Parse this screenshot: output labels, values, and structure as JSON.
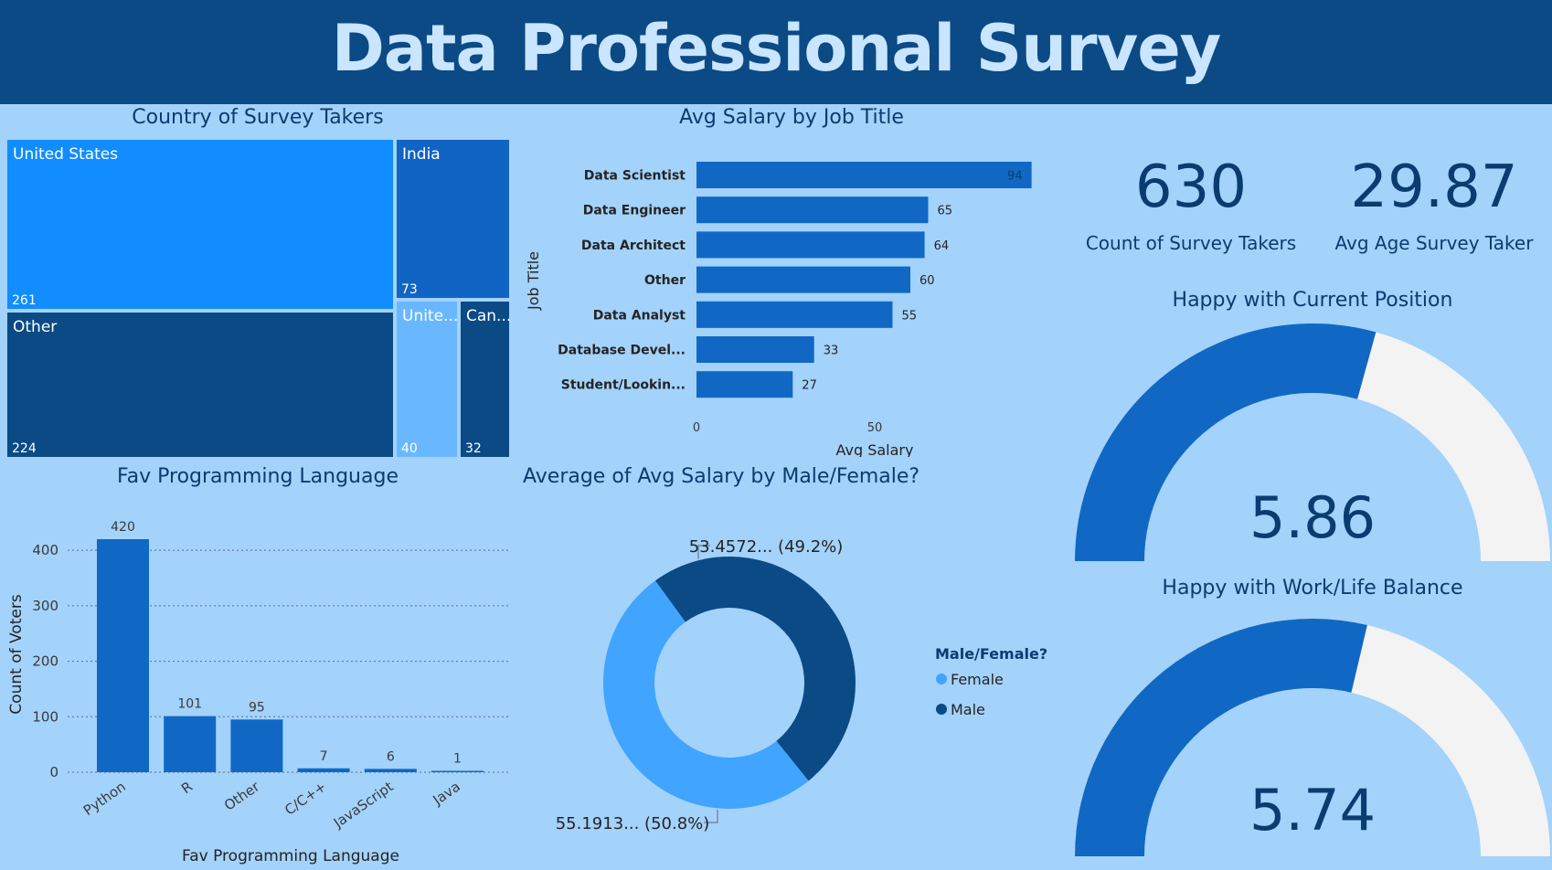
{
  "header": {
    "title": "Data Professional Survey"
  },
  "treemap": {
    "title": "Country of Survey Takers",
    "tiles": [
      {
        "label": "United States",
        "value": 261,
        "color": "#118dff"
      },
      {
        "label": "India",
        "value": 73,
        "color": "#1065c4"
      },
      {
        "label": "Other",
        "value": 224,
        "color": "#0b4a85"
      },
      {
        "label": "Unite...",
        "value": 40,
        "color": "#69b8ff"
      },
      {
        "label": "Can...",
        "value": 32,
        "color": "#0b4a85"
      }
    ]
  },
  "kpis": {
    "count": {
      "value": "630",
      "label": "Count of Survey Takers"
    },
    "age": {
      "value": "29.87",
      "label": "Avg Age Survey Taker"
    }
  },
  "gauges": {
    "position": {
      "title": "Happy with Current Position",
      "value": "5.86",
      "fraction": 0.586
    },
    "balance": {
      "title": "Happy with Work/Life Balance",
      "value": "5.74",
      "fraction": 0.574
    }
  },
  "chart_data": [
    {
      "type": "bar",
      "orientation": "horizontal",
      "title": "Avg Salary by Job Title",
      "xlabel": "Avg Salary",
      "ylabel": "Job Title",
      "categories": [
        "Data Scientist",
        "Data Engineer",
        "Data Architect",
        "Other",
        "Data Analyst",
        "Database Devel...",
        "Student/Lookin..."
      ],
      "values": [
        94,
        65,
        64,
        60,
        55,
        33,
        27
      ],
      "xticks": [
        "0",
        "50"
      ],
      "xlim": [
        0,
        100
      ],
      "color": "#1068c4"
    },
    {
      "type": "bar",
      "title": "Fav Programming Language",
      "xlabel": "Fav Programming Language",
      "ylabel": "Count of Voters",
      "categories": [
        "Python",
        "R",
        "Other",
        "C/C++",
        "JavaScript",
        "Java"
      ],
      "values": [
        420,
        101,
        95,
        7,
        6,
        1
      ],
      "yticks": [
        "0",
        "100",
        "200",
        "300",
        "400"
      ],
      "ylim": [
        0,
        420
      ],
      "color": "#1068c4"
    },
    {
      "type": "pie",
      "variant": "donut",
      "title": "Average of Avg Salary by Male/Female?",
      "legend_title": "Male/Female?",
      "series": [
        {
          "name": "Female",
          "value": 55.1913,
          "label": "55.1913... (50.8%)",
          "color": "#41a4ff"
        },
        {
          "name": "Male",
          "value": 53.4572,
          "label": "53.4572... (49.2%)",
          "color": "#0b4a85"
        }
      ]
    }
  ]
}
